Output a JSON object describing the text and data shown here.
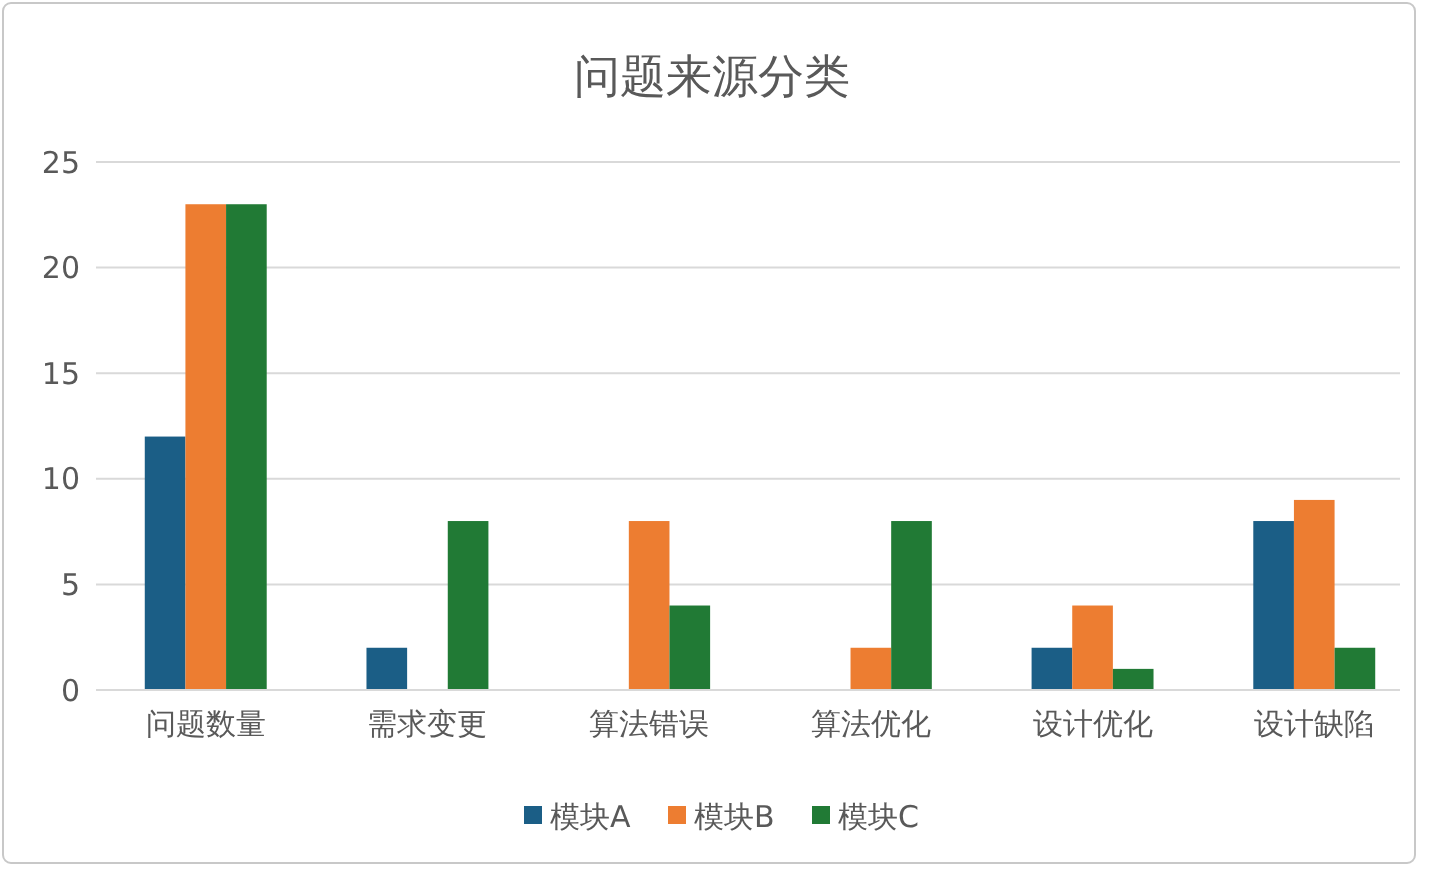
{
  "chart_data": {
    "type": "bar",
    "title": "问题来源分类",
    "categories": [
      "问题数量",
      "需求变更",
      "算法错误",
      "算法优化",
      "设计优化",
      "设计缺陷"
    ],
    "series": [
      {
        "name": "模块A",
        "color": "#1b5e86",
        "values": [
          12,
          2,
          0,
          0,
          2,
          8
        ]
      },
      {
        "name": "模块B",
        "color": "#ed7d31",
        "values": [
          23,
          0,
          8,
          2,
          4,
          9
        ]
      },
      {
        "name": "模块C",
        "color": "#217a35",
        "values": [
          23,
          8,
          4,
          8,
          1,
          2
        ]
      }
    ],
    "ylim": [
      0,
      25
    ],
    "yticks": [
      0,
      5,
      10,
      15,
      20,
      25
    ],
    "grid": "y",
    "legend": "bottom"
  }
}
